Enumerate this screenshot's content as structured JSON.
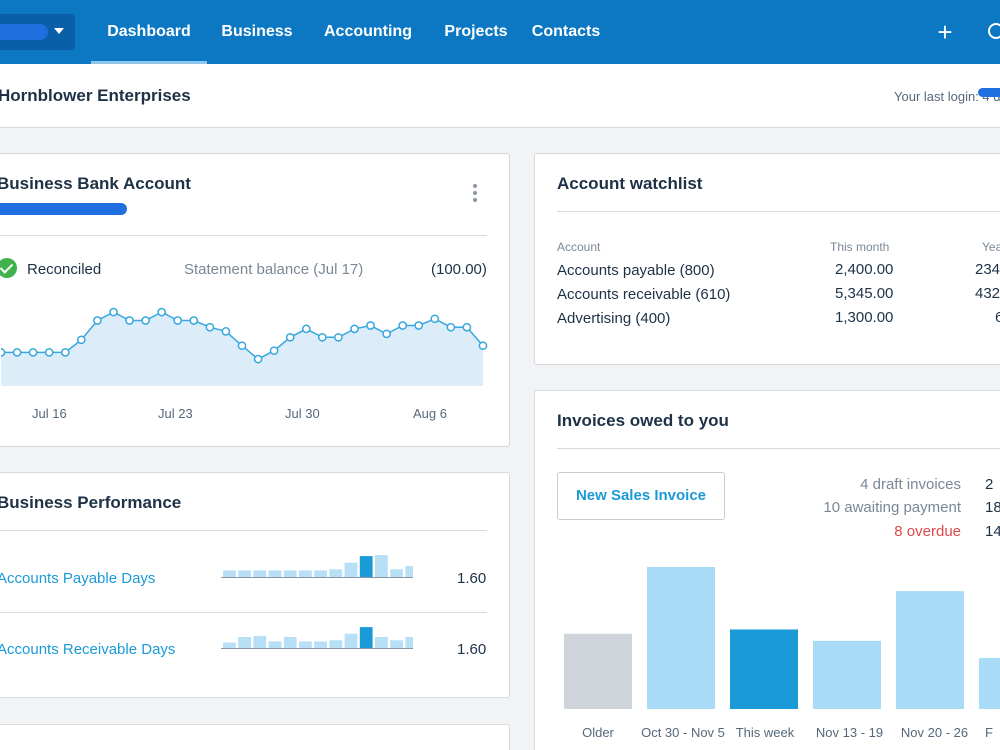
{
  "nav": {
    "items": [
      "Dashboard",
      "Business",
      "Accounting",
      "Projects",
      "Contacts"
    ],
    "active": "Dashboard",
    "plus_icon": "plus-icon",
    "search_icon": "search-icon",
    "color": "#0c78c4"
  },
  "header": {
    "org_name": "Hornblower Enterprises",
    "last_login": "Your last login: 4 d"
  },
  "bank": {
    "title": "Business Bank Account",
    "status": "Reconciled",
    "statement_label": "Statement balance (Jul 17)",
    "statement_value": "(100.00)",
    "dates": [
      "Jul 16",
      "Jul 23",
      "Jul 30",
      "Aug 6"
    ],
    "balance_trend": [
      40,
      40,
      40,
      40,
      40,
      55,
      78,
      88,
      78,
      78,
      88,
      78,
      78,
      70,
      65,
      48,
      32,
      42,
      58,
      68,
      58,
      58,
      68,
      72,
      62,
      72,
      72,
      80,
      70,
      70,
      48
    ]
  },
  "watchlist": {
    "title": "Account watchlist",
    "headers": [
      "Account",
      "This month",
      "Yea"
    ],
    "rows": [
      {
        "account": "Accounts payable (800)",
        "month": "2,400.00",
        "year": "234"
      },
      {
        "account": "Accounts receivable (610)",
        "month": "5,345.00",
        "year": "432"
      },
      {
        "account": "Advertising (400)",
        "month": "1,300.00",
        "year": "6"
      }
    ]
  },
  "performance": {
    "title": "Business Performance",
    "rows": [
      {
        "label": "Accounts Payable Days",
        "value": "1.60",
        "bars": [
          0.3,
          0.3,
          0.3,
          0.3,
          0.3,
          0.3,
          0.3,
          0.35,
          0.65,
          0.95,
          1.0,
          0.35,
          0.5
        ],
        "highlight": 9
      },
      {
        "label": "Accounts Receivable Days",
        "value": "1.60",
        "bars": [
          0.25,
          0.5,
          0.55,
          0.3,
          0.5,
          0.3,
          0.3,
          0.35,
          0.65,
          0.95,
          0.5,
          0.35,
          0.5
        ],
        "highlight": 9
      }
    ]
  },
  "invoices": {
    "title": "Invoices owed to you",
    "new_button": "New Sales Invoice",
    "summary": [
      {
        "label": "4 draft invoices",
        "amount": "2",
        "overdue": false
      },
      {
        "label": "10 awaiting payment",
        "amount": "18",
        "overdue": false
      },
      {
        "label": "8 overdue",
        "amount": "14",
        "overdue": true
      }
    ],
    "colors": {
      "older": "#cfd5db",
      "normal": "#a8dbf6",
      "current": "#1b9ad8"
    },
    "chart_data": {
      "type": "bar",
      "categories": [
        "Older",
        "Oct 30 - Nov 5",
        "This week",
        "Nov 13 - 19",
        "Nov 20 - 26",
        "F"
      ],
      "values": [
        0.53,
        1.0,
        0.56,
        0.48,
        0.83,
        0.36
      ],
      "highlight_index": 2,
      "xlabel": "",
      "ylabel": ""
    }
  }
}
